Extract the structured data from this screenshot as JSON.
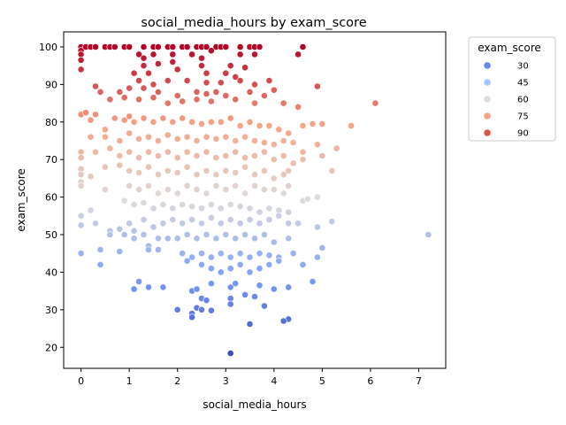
{
  "chart_data": {
    "type": "scatter",
    "title": "social_media_hours by exam_score",
    "xlabel": "social_media_hours",
    "ylabel": "exam_score",
    "xlim": [
      -0.36,
      7.56
    ],
    "ylim": [
      14.4,
      104.0
    ],
    "xticks": [
      0,
      1,
      2,
      3,
      4,
      5,
      6,
      7
    ],
    "yticks": [
      20,
      30,
      40,
      50,
      60,
      70,
      80,
      90,
      100
    ],
    "grid": false,
    "legend": {
      "title": "exam_score",
      "placement": "outside-right-top",
      "entries": [
        {
          "label": "30",
          "color": "#6788ee"
        },
        {
          "label": "45",
          "color": "#a6c4fe"
        },
        {
          "label": "60",
          "color": "#dddcdc"
        },
        {
          "label": "75",
          "color": "#f6a385"
        },
        {
          "label": "90",
          "color": "#d95847"
        }
      ]
    },
    "hue": {
      "min": 18.4,
      "max": 100,
      "colormap": "coolwarm"
    },
    "points": [
      [
        0.0,
        100
      ],
      [
        0.0,
        99
      ],
      [
        0.0,
        98
      ],
      [
        0.0,
        96.5
      ],
      [
        0.0,
        94
      ],
      [
        0.1,
        100
      ],
      [
        0.2,
        100
      ],
      [
        0.3,
        100
      ],
      [
        0.5,
        100
      ],
      [
        0.6,
        100
      ],
      [
        0.7,
        100
      ],
      [
        0.9,
        100
      ],
      [
        1.0,
        100
      ],
      [
        1.3,
        100
      ],
      [
        1.5,
        100
      ],
      [
        1.6,
        100
      ],
      [
        1.8,
        100
      ],
      [
        1.9,
        100
      ],
      [
        2.1,
        100
      ],
      [
        2.2,
        100
      ],
      [
        2.4,
        100
      ],
      [
        2.5,
        100
      ],
      [
        2.6,
        100
      ],
      [
        2.8,
        100
      ],
      [
        2.9,
        100
      ],
      [
        3.0,
        100
      ],
      [
        3.3,
        100
      ],
      [
        3.5,
        100
      ],
      [
        3.6,
        100
      ],
      [
        3.7,
        100
      ],
      [
        4.6,
        100
      ],
      [
        1.2,
        98
      ],
      [
        1.3,
        97
      ],
      [
        1.5,
        98
      ],
      [
        1.9,
        98
      ],
      [
        2.3,
        98
      ],
      [
        2.5,
        97
      ],
      [
        2.7,
        99
      ],
      [
        3.3,
        98
      ],
      [
        3.6,
        98
      ],
      [
        4.5,
        98
      ],
      [
        1.3,
        95
      ],
      [
        1.6,
        95.5
      ],
      [
        1.9,
        96
      ],
      [
        2.5,
        95
      ],
      [
        3.1,
        95
      ],
      [
        3.4,
        94.5
      ],
      [
        1.1,
        93
      ],
      [
        1.4,
        93
      ],
      [
        2.0,
        94
      ],
      [
        2.6,
        93
      ],
      [
        3.0,
        93
      ],
      [
        3.2,
        92
      ],
      [
        1.2,
        91
      ],
      [
        1.5,
        90
      ],
      [
        1.8,
        91
      ],
      [
        2.2,
        91
      ],
      [
        2.6,
        90.5
      ],
      [
        2.9,
        90.5
      ],
      [
        3.3,
        91
      ],
      [
        3.6,
        90
      ],
      [
        3.9,
        91
      ],
      [
        4.9,
        89.5
      ],
      [
        0.3,
        89.5
      ],
      [
        0.4,
        88
      ],
      [
        0.8,
        88
      ],
      [
        1.0,
        89
      ],
      [
        1.3,
        89
      ],
      [
        1.6,
        88
      ],
      [
        2.0,
        87
      ],
      [
        2.4,
        88
      ],
      [
        2.6,
        87.5
      ],
      [
        2.8,
        88
      ],
      [
        3.0,
        87
      ],
      [
        3.5,
        88
      ],
      [
        3.8,
        87
      ],
      [
        4.0,
        88.5
      ],
      [
        0.6,
        86
      ],
      [
        0.9,
        86.5
      ],
      [
        1.2,
        86
      ],
      [
        1.5,
        86.5
      ],
      [
        1.8,
        85
      ],
      [
        2.1,
        85.5
      ],
      [
        2.4,
        86
      ],
      [
        2.7,
        85.5
      ],
      [
        3.2,
        86
      ],
      [
        3.6,
        85
      ],
      [
        4.2,
        85
      ],
      [
        4.5,
        84
      ],
      [
        6.1,
        85
      ],
      [
        0.0,
        82
      ],
      [
        0.1,
        82.5
      ],
      [
        0.2,
        80.5
      ],
      [
        0.3,
        82
      ],
      [
        0.5,
        78
      ],
      [
        0.7,
        81
      ],
      [
        0.9,
        80.5
      ],
      [
        1.0,
        81.5
      ],
      [
        1.1,
        80
      ],
      [
        1.3,
        81
      ],
      [
        1.5,
        80
      ],
      [
        1.7,
        81
      ],
      [
        1.9,
        80
      ],
      [
        2.1,
        81
      ],
      [
        2.3,
        80
      ],
      [
        2.5,
        79.5
      ],
      [
        2.7,
        80
      ],
      [
        2.9,
        80
      ],
      [
        3.1,
        81
      ],
      [
        3.3,
        79
      ],
      [
        3.5,
        80
      ],
      [
        3.7,
        79
      ],
      [
        3.9,
        79
      ],
      [
        4.1,
        78
      ],
      [
        4.3,
        77
      ],
      [
        4.6,
        79
      ],
      [
        4.8,
        79.5
      ],
      [
        5.0,
        79.5
      ],
      [
        5.6,
        79
      ],
      [
        0.2,
        76
      ],
      [
        0.5,
        76
      ],
      [
        0.8,
        75
      ],
      [
        1.0,
        77
      ],
      [
        1.2,
        75.5
      ],
      [
        1.4,
        76
      ],
      [
        1.6,
        75
      ],
      [
        1.8,
        76.5
      ],
      [
        2.0,
        75.5
      ],
      [
        2.2,
        76
      ],
      [
        2.4,
        75
      ],
      [
        2.6,
        76
      ],
      [
        2.8,
        75.5
      ],
      [
        3.0,
        76
      ],
      [
        3.2,
        75
      ],
      [
        3.4,
        76
      ],
      [
        3.6,
        75
      ],
      [
        3.8,
        74.5
      ],
      [
        4.0,
        74
      ],
      [
        4.2,
        75
      ],
      [
        4.4,
        74.5
      ],
      [
        4.6,
        72
      ],
      [
        4.9,
        74
      ],
      [
        5.2,
        67
      ],
      [
        5.3,
        73
      ],
      [
        0.0,
        72
      ],
      [
        0.0,
        70.5
      ],
      [
        0.3,
        72
      ],
      [
        0.6,
        73
      ],
      [
        0.8,
        71
      ],
      [
        1.0,
        72
      ],
      [
        1.2,
        70.5
      ],
      [
        1.4,
        72
      ],
      [
        1.6,
        71
      ],
      [
        1.8,
        72
      ],
      [
        2.0,
        70.5
      ],
      [
        2.2,
        72
      ],
      [
        2.4,
        71
      ],
      [
        2.6,
        72
      ],
      [
        2.8,
        70.5
      ],
      [
        3.0,
        71
      ],
      [
        3.2,
        72
      ],
      [
        3.4,
        70.5
      ],
      [
        3.6,
        71
      ],
      [
        3.8,
        72
      ],
      [
        4.0,
        70
      ],
      [
        4.2,
        71
      ],
      [
        4.4,
        69
      ],
      [
        4.6,
        70
      ],
      [
        5.0,
        71
      ],
      [
        0.0,
        67.5
      ],
      [
        0.0,
        66
      ],
      [
        0.5,
        68
      ],
      [
        0.8,
        68.5
      ],
      [
        1.0,
        67
      ],
      [
        1.2,
        66.5
      ],
      [
        1.4,
        68
      ],
      [
        1.6,
        66
      ],
      [
        1.8,
        67
      ],
      [
        2.0,
        66.5
      ],
      [
        2.2,
        68
      ],
      [
        2.4,
        66
      ],
      [
        2.6,
        67
      ],
      [
        2.8,
        66
      ],
      [
        3.0,
        67
      ],
      [
        3.2,
        66.5
      ],
      [
        3.4,
        68
      ],
      [
        3.6,
        66
      ],
      [
        3.8,
        67
      ],
      [
        4.0,
        65
      ],
      [
        4.2,
        66
      ],
      [
        4.3,
        67
      ],
      [
        0.0,
        64
      ],
      [
        0.0,
        63
      ],
      [
        0.2,
        65.5
      ],
      [
        0.5,
        62
      ],
      [
        1.0,
        63
      ],
      [
        1.2,
        62
      ],
      [
        1.4,
        63
      ],
      [
        1.6,
        61
      ],
      [
        1.8,
        62
      ],
      [
        2.0,
        61
      ],
      [
        2.2,
        63
      ],
      [
        2.4,
        62
      ],
      [
        2.6,
        61
      ],
      [
        2.8,
        63
      ],
      [
        3.0,
        62
      ],
      [
        3.2,
        63
      ],
      [
        3.4,
        61
      ],
      [
        3.6,
        63
      ],
      [
        3.8,
        62
      ],
      [
        4.0,
        62
      ],
      [
        4.2,
        61
      ],
      [
        4.3,
        63
      ],
      [
        4.9,
        60
      ],
      [
        0.9,
        59
      ],
      [
        1.1,
        58
      ],
      [
        1.3,
        58.5
      ],
      [
        1.5,
        57
      ],
      [
        1.7,
        58
      ],
      [
        1.9,
        57
      ],
      [
        2.1,
        58
      ],
      [
        2.3,
        57.5
      ],
      [
        2.5,
        57
      ],
      [
        2.7,
        58
      ],
      [
        2.9,
        57
      ],
      [
        3.1,
        58
      ],
      [
        3.3,
        57.5
      ],
      [
        3.5,
        57
      ],
      [
        3.7,
        56
      ],
      [
        3.9,
        57
      ],
      [
        4.1,
        56.5
      ],
      [
        4.3,
        56
      ],
      [
        4.6,
        59
      ],
      [
        4.7,
        59.5
      ],
      [
        0.0,
        55
      ],
      [
        0.2,
        56.5
      ],
      [
        0.0,
        52.5
      ],
      [
        0.3,
        53
      ],
      [
        0.6,
        51
      ],
      [
        0.8,
        51.5
      ],
      [
        1.0,
        53
      ],
      [
        1.1,
        51
      ],
      [
        1.3,
        54
      ],
      [
        1.5,
        52
      ],
      [
        1.7,
        53
      ],
      [
        1.9,
        54
      ],
      [
        2.1,
        53
      ],
      [
        2.3,
        54
      ],
      [
        2.5,
        53
      ],
      [
        2.7,
        54.5
      ],
      [
        2.9,
        53
      ],
      [
        3.1,
        54
      ],
      [
        3.3,
        53
      ],
      [
        3.5,
        54
      ],
      [
        3.7,
        53
      ],
      [
        3.9,
        54
      ],
      [
        4.1,
        55
      ],
      [
        4.3,
        53
      ],
      [
        4.5,
        53
      ],
      [
        4.9,
        52
      ],
      [
        5.2,
        53.5
      ],
      [
        7.2,
        50
      ],
      [
        0.6,
        50
      ],
      [
        0.9,
        50
      ],
      [
        1.1,
        49
      ],
      [
        1.3,
        50
      ],
      [
        1.6,
        49
      ],
      [
        1.8,
        49
      ],
      [
        2.0,
        49
      ],
      [
        2.2,
        50
      ],
      [
        2.4,
        49
      ],
      [
        2.6,
        50
      ],
      [
        2.8,
        49
      ],
      [
        3.0,
        50
      ],
      [
        3.2,
        49
      ],
      [
        3.4,
        50
      ],
      [
        3.6,
        49
      ],
      [
        3.8,
        50
      ],
      [
        4.0,
        48
      ],
      [
        4.3,
        49
      ],
      [
        0.0,
        45
      ],
      [
        0.4,
        46
      ],
      [
        0.8,
        45.5
      ],
      [
        1.4,
        47
      ],
      [
        1.6,
        46
      ],
      [
        2.1,
        45
      ],
      [
        2.3,
        44
      ],
      [
        2.5,
        45
      ],
      [
        2.7,
        44
      ],
      [
        2.9,
        45
      ],
      [
        3.1,
        44
      ],
      [
        3.3,
        45
      ],
      [
        3.5,
        44
      ],
      [
        3.7,
        45
      ],
      [
        3.9,
        44.5
      ],
      [
        4.1,
        44
      ],
      [
        4.4,
        45
      ],
      [
        4.6,
        42
      ],
      [
        4.9,
        44
      ],
      [
        5.0,
        46.5
      ],
      [
        0.4,
        42
      ],
      [
        1.4,
        46
      ],
      [
        2.2,
        43
      ],
      [
        2.5,
        42
      ],
      [
        2.7,
        41
      ],
      [
        2.9,
        40
      ],
      [
        3.1,
        41
      ],
      [
        3.3,
        42
      ],
      [
        3.5,
        40
      ],
      [
        3.7,
        41
      ],
      [
        3.9,
        42
      ],
      [
        4.1,
        43
      ],
      [
        4.8,
        37.5
      ],
      [
        1.1,
        35.5
      ],
      [
        1.2,
        37.5
      ],
      [
        1.4,
        36
      ],
      [
        1.7,
        36
      ],
      [
        2.3,
        35
      ],
      [
        2.4,
        35.5
      ],
      [
        2.7,
        37
      ],
      [
        3.1,
        36
      ],
      [
        3.2,
        37
      ],
      [
        3.4,
        34
      ],
      [
        3.7,
        36.5
      ],
      [
        4.0,
        35.5
      ],
      [
        4.3,
        36
      ],
      [
        2.5,
        33
      ],
      [
        2.6,
        32.5
      ],
      [
        3.1,
        33
      ],
      [
        3.6,
        33.5
      ],
      [
        3.1,
        31.5
      ],
      [
        3.8,
        31
      ],
      [
        2.0,
        30
      ],
      [
        2.4,
        30.5
      ],
      [
        2.5,
        30
      ],
      [
        2.7,
        29.8
      ],
      [
        2.3,
        29
      ],
      [
        2.3,
        28
      ],
      [
        4.3,
        27.5
      ],
      [
        4.2,
        27
      ],
      [
        3.5,
        26.2
      ],
      [
        3.1,
        18.4
      ]
    ]
  }
}
